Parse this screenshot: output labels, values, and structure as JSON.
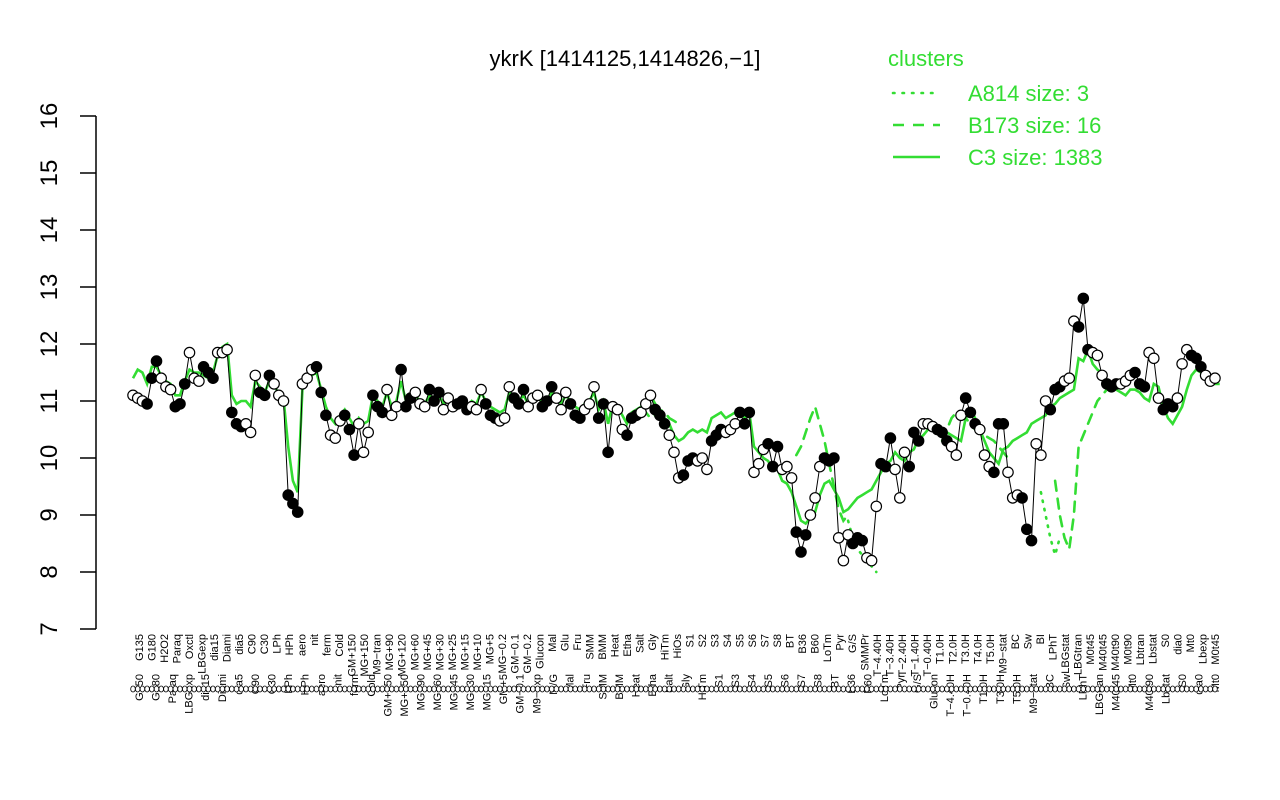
{
  "chart_data": {
    "type": "line",
    "title": "ykrK [1414125,1414826,−1]",
    "xlabel": "",
    "ylabel": "",
    "ylim": [
      7,
      16
    ],
    "yticks": [
      7,
      8,
      9,
      10,
      11,
      12,
      13,
      14,
      15,
      16
    ],
    "legend": {
      "title": "clusters",
      "position": "top-right",
      "entries": [
        {
          "label": "A814 size: 3",
          "style": "dotted",
          "color": "#33dd33"
        },
        {
          "label": "B173 size: 16",
          "style": "dashed",
          "color": "#33dd33"
        },
        {
          "label": "C3 size: 1383",
          "style": "solid",
          "color": "#33dd33"
        }
      ]
    },
    "x_tick_labels_top": [
      "G135",
      "G180",
      "H2O2",
      "Paraq",
      "Oxctl",
      "LBGexp",
      "dia15",
      "Diami",
      "dia5",
      "C90",
      "C30",
      "LPh",
      "HPh",
      "aero",
      "nit",
      "ferm",
      "Cold",
      "GM+150",
      "MG+150",
      "M9−tran",
      "MG+90",
      "MG+120",
      "MG+60",
      "MG+45",
      "MG+30",
      "MG+25",
      "MG+15",
      "MG+10",
      "MG+5",
      "MG−0.2",
      "GM−0.1",
      "GM−0.2",
      "Glucon",
      "Mal",
      "Glu",
      "Fru",
      "SMM",
      "BMM",
      "Heat",
      "Etha",
      "Salt",
      "Gly",
      "HiTm",
      "HiOs",
      "S1",
      "S2",
      "S3",
      "S4",
      "S5",
      "S6",
      "S7",
      "S8",
      "BT",
      "B36",
      "B60",
      "LoTm",
      "Pyr",
      "G/S",
      "SMMPr",
      "T−4.40H",
      "T−3.40H",
      "T−2.40H",
      "T−1.40H",
      "T−0.40H",
      "T1.0H",
      "T2.0H",
      "T3.0H",
      "T4.0H",
      "T5.0H",
      "M9−stat",
      "BC",
      "Sw",
      "BI",
      "LPhT",
      "LBGstat",
      "LBGtran",
      "M0t45",
      "M40t45",
      "M40t90",
      "M0t90",
      "Lbtran",
      "Lbstat",
      "S0",
      "dia0",
      "Mt0",
      "Lbexp",
      "M0t45"
    ],
    "x_tick_labels_bottom": [
      "G150",
      "G180",
      "Paraq",
      "LBGexp",
      "dia15",
      "Diami",
      "dia5",
      "C90",
      "C30",
      "LPh",
      "HPh",
      "aero",
      "nit",
      "ferm",
      "Cold",
      "GM+150",
      "MG+150",
      "MG+90",
      "MG+60",
      "MG+45",
      "MG+30",
      "MG+15",
      "GM+5",
      "GM−0.1",
      "M9−exp",
      "M/G",
      "Mal",
      "Fru",
      "SMM",
      "BMM",
      "Heat",
      "Etha",
      "Salt",
      "Gly",
      "HiTm",
      "S1",
      "S3",
      "S4",
      "S5",
      "S6",
      "S7",
      "S8",
      "BT",
      "B36",
      "B60",
      "LoTm",
      "Pyr",
      "G/S",
      "Glucon",
      "T−4.40H",
      "T−0.40H",
      "T1.0H",
      "T3.0H",
      "T5.0H",
      "M9−stat",
      "BC",
      "Sw",
      "LPhT",
      "LBGtran",
      "M40t45",
      "Mt0",
      "M40t90",
      "Lbstat",
      "S0",
      "dia0",
      "Mt0"
    ],
    "series": [
      {
        "style": "line-with-points",
        "values": [
          11.1,
          11.05,
          11.0,
          10.95,
          11.4,
          11.7,
          11.4,
          11.25,
          11.2,
          10.9,
          10.95,
          11.3,
          11.85,
          11.4,
          11.35,
          11.6,
          11.5,
          11.4,
          11.85,
          11.85,
          11.9,
          10.8,
          10.6,
          10.55,
          10.6,
          10.45,
          11.45,
          11.15,
          11.1,
          11.45,
          11.3,
          11.1,
          11.0,
          9.35,
          9.2,
          9.05,
          11.3,
          11.4,
          11.55,
          11.6,
          11.15,
          10.75,
          10.4,
          10.35,
          10.65,
          10.75,
          10.5,
          10.05,
          10.6,
          10.1,
          10.45,
          11.1,
          10.9,
          10.8,
          11.2,
          10.75,
          10.9,
          11.55,
          10.9,
          11.05,
          11.15,
          10.95,
          10.9,
          11.2,
          11.0,
          11.15,
          10.85,
          11.05,
          10.9,
          10.95,
          11.0,
          10.85,
          10.9,
          10.85,
          11.2,
          10.95,
          10.75,
          10.7,
          10.65,
          10.7,
          11.25,
          11.05,
          10.95,
          11.2,
          10.9,
          11.05,
          11.1,
          10.9,
          11.0,
          11.25,
          11.05,
          10.85,
          11.15,
          10.95,
          10.75,
          10.7,
          10.85,
          10.95,
          11.25,
          10.7,
          10.95,
          10.1,
          10.9,
          10.85,
          10.5,
          10.4,
          10.7,
          10.75,
          10.8,
          10.95,
          11.1,
          10.85,
          10.75,
          10.6,
          10.4,
          10.1,
          9.65,
          9.7,
          9.95,
          10.0,
          9.95,
          10.0,
          9.8,
          10.3,
          10.4,
          10.5,
          10.45,
          10.5,
          10.6,
          10.8,
          10.6,
          10.8,
          9.75,
          9.9,
          10.15,
          10.25,
          9.85,
          10.2,
          9.8,
          9.85,
          9.65,
          8.7,
          8.35,
          8.65,
          9.0,
          9.3,
          9.85,
          10.0,
          9.95,
          10.0,
          8.6,
          8.2,
          8.65,
          8.5,
          8.6,
          8.55,
          8.25,
          8.2,
          9.15,
          9.9,
          9.85,
          10.35,
          9.8,
          9.3,
          10.1,
          9.85,
          10.45,
          10.3,
          10.6,
          10.6,
          10.55,
          10.5,
          10.45,
          10.3,
          10.2,
          10.05,
          10.75,
          11.05,
          10.8,
          10.6,
          10.5,
          10.05,
          9.85,
          9.75,
          10.6,
          10.6,
          9.75,
          9.3,
          9.35,
          9.3,
          8.75,
          8.55,
          10.25,
          10.05,
          11.0,
          10.85,
          11.2,
          11.25,
          11.35,
          11.4,
          12.4,
          12.3,
          12.8,
          11.9,
          11.85,
          11.8,
          11.45,
          11.3,
          11.25,
          11.3,
          11.3,
          11.35,
          11.45,
          11.5,
          11.3,
          11.25,
          11.85,
          11.75,
          11.05,
          10.85,
          10.95,
          10.9,
          11.05,
          11.65,
          11.9,
          11.8,
          11.75,
          11.6,
          11.45,
          11.35,
          11.4
        ]
      },
      {
        "name": "C3 size: 1383",
        "style": "solid",
        "values": [
          11.4,
          11.55,
          11.5,
          11.3,
          11.6,
          11.6,
          11.45,
          11.35,
          11.3,
          11.1,
          11.1,
          11.35,
          11.55,
          11.5,
          11.5,
          11.45,
          11.4,
          11.5,
          11.8,
          11.95,
          12.0,
          11.1,
          10.95,
          11.0,
          11.0,
          10.9,
          11.35,
          11.25,
          11.15,
          11.35,
          11.3,
          11.1,
          11.05,
          10.2,
          9.6,
          9.4,
          11.2,
          11.35,
          11.45,
          11.5,
          11.2,
          10.9,
          10.7,
          10.6,
          10.75,
          10.85,
          10.7,
          10.55,
          10.7,
          10.6,
          10.65,
          11.1,
          11.0,
          10.9,
          11.15,
          10.9,
          11.0,
          11.35,
          11.0,
          11.05,
          11.1,
          11.0,
          10.95,
          11.1,
          11.05,
          11.1,
          10.95,
          11.05,
          10.95,
          11.0,
          11.05,
          10.9,
          11.0,
          10.95,
          11.15,
          11.0,
          10.9,
          10.85,
          10.8,
          10.85,
          11.15,
          11.05,
          11.0,
          11.1,
          10.95,
          11.05,
          11.1,
          10.95,
          11.0,
          11.15,
          11.05,
          10.95,
          11.1,
          11.0,
          10.9,
          10.85,
          10.95,
          11.0,
          11.15,
          10.85,
          11.0,
          10.6,
          10.95,
          10.9,
          10.75,
          10.6,
          10.8,
          10.85,
          10.9,
          11.0,
          11.1,
          10.95,
          10.85,
          10.7,
          10.6,
          10.4,
          10.3,
          10.35,
          10.45,
          10.5,
          10.45,
          10.5,
          10.45,
          10.7,
          10.75,
          10.8,
          10.7,
          10.75,
          10.8,
          10.85,
          10.7,
          10.8,
          10.2,
          10.1,
          10.0,
          9.95,
          9.8,
          9.8,
          9.6,
          9.55,
          9.4,
          9.15,
          8.9,
          8.85,
          8.95,
          9.05,
          9.35,
          9.55,
          9.6,
          9.45,
          9.3,
          9.05,
          9.1,
          9.2,
          9.3,
          9.35,
          9.4,
          9.45,
          9.6,
          9.75,
          9.9,
          9.95,
          10.1,
          10.0,
          9.95,
          10.1,
          10.15,
          10.35,
          10.4,
          10.5,
          10.5,
          10.55,
          10.5,
          10.45,
          10.4,
          10.35,
          10.3,
          10.7,
          10.85,
          10.7,
          10.5,
          10.3,
          10.1,
          10.0,
          9.9,
          10.15,
          10.2,
          10.3,
          10.35,
          10.4,
          10.45,
          10.6,
          10.65,
          10.7,
          10.75,
          10.9,
          10.95,
          11.05,
          11.1,
          11.15,
          11.2,
          11.75,
          11.7,
          11.9,
          11.65,
          11.55,
          11.5,
          11.35,
          11.3,
          11.2,
          11.15,
          11.1,
          11.2,
          11.2,
          11.15,
          11.05,
          11.0,
          11.3,
          11.25,
          10.9,
          10.7,
          10.6,
          10.75,
          10.9,
          11.2,
          11.45,
          11.55,
          11.5,
          11.4,
          11.35,
          11.3,
          11.3
        ]
      },
      {
        "name": "B173 size: 16",
        "style": "dashed",
        "segments": [
          {
            "from": 108,
            "to": 116,
            "values": [
              10.85,
              10.8,
              10.7,
              10.75,
              10.85,
              10.8,
              10.7,
              10.65,
              10.6
            ]
          },
          {
            "from": 141,
            "to": 152,
            "values": [
              10.05,
              10.2,
              10.45,
              10.7,
              10.9,
              10.6,
              10.3,
              9.9,
              9.5,
              9.1,
              8.9,
              9.0
            ]
          },
          {
            "from": 172,
            "to": 186,
            "values": [
              10.3,
              10.5,
              10.7,
              10.8,
              10.75,
              10.7,
              10.6,
              10.5,
              10.45,
              10.4,
              10.35,
              10.3,
              10.2,
              10.1,
              10.0
            ]
          },
          {
            "from": 196,
            "to": 207,
            "values": [
              9.6,
              9.0,
              8.6,
              8.4,
              9.0,
              10.2,
              10.4,
              10.6,
              10.8,
              11.0,
              11.1,
              11.2
            ]
          }
        ]
      },
      {
        "name": "A814 size: 3",
        "style": "dotted",
        "segments": [
          {
            "from": 152,
            "to": 158,
            "values": [
              8.9,
              8.6,
              8.4,
              8.3,
              8.2,
              8.1,
              8.0
            ]
          },
          {
            "from": 193,
            "to": 197,
            "values": [
              9.4,
              9.0,
              8.6,
              8.3,
              8.6
            ]
          }
        ]
      }
    ]
  }
}
